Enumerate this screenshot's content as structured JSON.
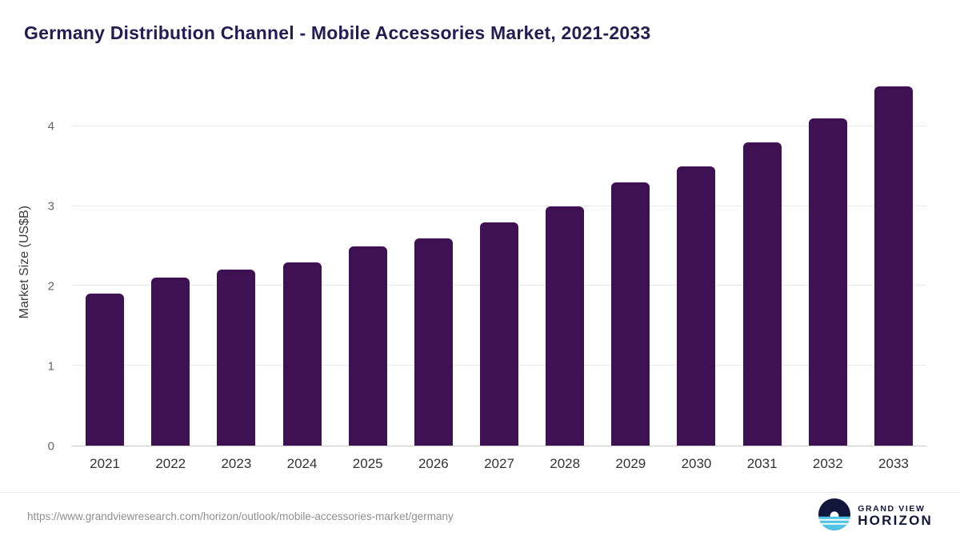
{
  "chart_data": {
    "type": "bar",
    "title": "Germany Distribution Channel - Mobile Accessories Market, 2021-2033",
    "xlabel": "",
    "ylabel": "Market Size (US$B)",
    "categories": [
      "2021",
      "2022",
      "2023",
      "2024",
      "2025",
      "2026",
      "2027",
      "2028",
      "2029",
      "2030",
      "2031",
      "2032",
      "2033"
    ],
    "values": [
      1.9,
      2.1,
      2.2,
      2.3,
      2.5,
      2.6,
      2.8,
      3.0,
      3.3,
      3.5,
      3.8,
      4.1,
      4.5
    ],
    "yticks": [
      0,
      1,
      2,
      3,
      4
    ],
    "ylim": [
      0,
      4.6
    ],
    "bar_color": "#3d1152",
    "grid": true,
    "legend": false
  },
  "footer": {
    "source_url": "https://www.grandviewresearch.com/horizon/outlook/mobile-accessories-market/germany",
    "logo_top": "GRAND VIEW",
    "logo_bottom": "HORIZON"
  }
}
